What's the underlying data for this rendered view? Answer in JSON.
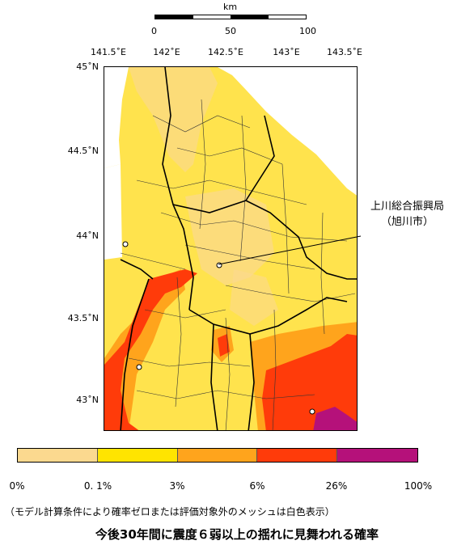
{
  "scale_bar": {
    "unit": "km",
    "ticks": [
      "0",
      "50",
      "100"
    ]
  },
  "longitude_labels": [
    "141.5˚E",
    "142˚E",
    "142.5˚E",
    "143˚E",
    "143.5˚E"
  ],
  "latitude_labels": [
    "45˚N",
    "44.5˚N",
    "44˚N",
    "43.5˚N",
    "43˚N"
  ],
  "callout": {
    "line1": "上川総合振興局",
    "line2": "（旭川市）"
  },
  "legend": {
    "colors": [
      "#fbd98f",
      "#ffe400",
      "#ffa41c",
      "#ff3b0a",
      "#b5117a"
    ],
    "ticks": [
      "0%",
      "0. 1%",
      "3%",
      "6%",
      "26%",
      "100%"
    ]
  },
  "note": "（モデル計算条件により確率ゼロまたは評価対象外のメッシュは白色表示）",
  "title": "今後30年間に震度６弱以上の揺れに見舞われる確率"
}
